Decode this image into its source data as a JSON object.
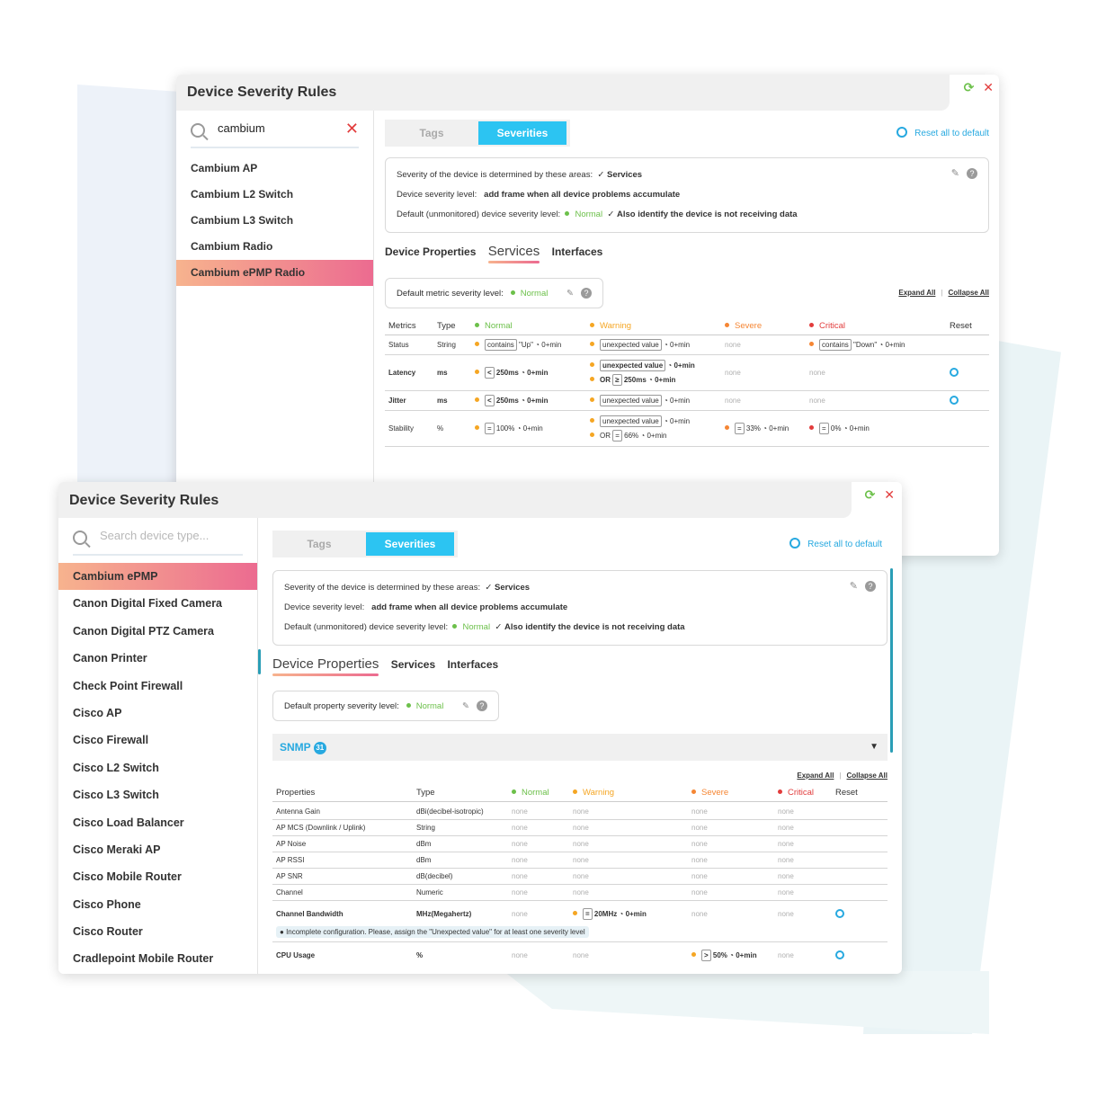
{
  "colors": {
    "accent": "#2cc4f2",
    "normal": "#6cc04a",
    "warning": "#f5a623",
    "severe": "#f58634",
    "critical": "#e23c3c"
  },
  "win1": {
    "title": "Device Severity Rules",
    "search": {
      "value": "cambium"
    },
    "sidebar": [
      "Cambium AP",
      "Cambium L2 Switch",
      "Cambium L3 Switch",
      "Cambium Radio",
      "Cambium ePMP Radio"
    ],
    "tabs": {
      "tags": "Tags",
      "severities": "Severities"
    },
    "reset_all": "Reset all to default",
    "info": {
      "line1_label": "Severity of the device is determined by these areas:",
      "line1_value": "Services",
      "line2_label": "Device severity level:",
      "line2_value": "add frame when all device problems accumulate",
      "line3_label": "Default (unmonitored) device severity level:",
      "line3_status": "Normal",
      "line3_extra": "Also identify the device is not receiving data"
    },
    "subtabs": {
      "device_properties": "Device Properties",
      "services": "Services",
      "interfaces": "Interfaces"
    },
    "default_metric": {
      "label": "Default metric severity level:",
      "value": "Normal"
    },
    "expand_all": "Expand All",
    "collapse_all": "Collapse All",
    "table": {
      "headers": [
        "Metrics",
        "Type",
        "Normal",
        "Warning",
        "Severe",
        "Critical",
        "Reset"
      ],
      "rows": [
        {
          "metric": "Status",
          "type": "String"
        },
        {
          "metric": "Latency",
          "type": "ms"
        },
        {
          "metric": "Jitter",
          "type": "ms"
        },
        {
          "metric": "Stability",
          "type": "%"
        }
      ],
      "cells": {
        "status_normal_op": "contains",
        "status_normal_val": "\"Up\"",
        "time": "0+min",
        "unexpected": "unexpected value",
        "none": "none",
        "status_critical_val": "\"Down\"",
        "lt": "<",
        "eq": "=",
        "ge": "≥",
        "gt": ">",
        "v250": "250ms",
        "or": "OR",
        "v100": "100%",
        "v66": "66%",
        "v33": "33%",
        "v0": "0%"
      }
    }
  },
  "win2": {
    "title": "Device Severity Rules",
    "search": {
      "placeholder": "Search device type..."
    },
    "sidebar": [
      "Cambium ePMP",
      "Canon Digital Fixed Camera",
      "Canon Digital PTZ Camera",
      "Canon Printer",
      "Check Point Firewall",
      "Cisco AP",
      "Cisco Firewall",
      "Cisco L2 Switch",
      "Cisco L3 Switch",
      "Cisco Load Balancer",
      "Cisco Meraki AP",
      "Cisco Mobile Router",
      "Cisco Phone",
      "Cisco Router",
      "Cradlepoint Mobile Router"
    ],
    "tabs": {
      "tags": "Tags",
      "severities": "Severities"
    },
    "reset_all": "Reset all to default",
    "info": {
      "line1_label": "Severity of the device is determined by these areas:",
      "line1_value": "Services",
      "line2_label": "Device severity level:",
      "line2_value": "add frame when all device problems accumulate",
      "line3_label": "Default (unmonitored) device severity level:",
      "line3_status": "Normal",
      "line3_extra": "Also identify the device is not receiving data"
    },
    "subtabs": {
      "device_properties": "Device Properties",
      "services": "Services",
      "interfaces": "Interfaces"
    },
    "default_property": {
      "label": "Default property severity level:",
      "value": "Normal"
    },
    "snmp": {
      "label": "SNMP",
      "count": "31"
    },
    "expand_all": "Expand All",
    "collapse_all": "Collapse All",
    "table": {
      "headers": [
        "Properties",
        "Type",
        "Normal",
        "Warning",
        "Severe",
        "Critical",
        "Reset"
      ],
      "rows": [
        {
          "name": "Antenna Gain",
          "type": "dBi(decibel-isotropic)"
        },
        {
          "name": "AP MCS (Downlink / Uplink)",
          "type": "String"
        },
        {
          "name": "AP Noise",
          "type": "dBm"
        },
        {
          "name": "AP RSSI",
          "type": "dBm"
        },
        {
          "name": "AP SNR",
          "type": "dB(decibel)"
        },
        {
          "name": "Channel",
          "type": "Numeric"
        },
        {
          "name": "Channel Bandwidth",
          "type": "MHz(Megahertz)"
        },
        {
          "name": "CPU Usage",
          "type": "%"
        }
      ],
      "none": "none",
      "cb_warning_op": "=",
      "cb_warning_val": "20MHz",
      "time": "0+min",
      "cpu_severe_op": ">",
      "cpu_severe_val": "50%",
      "incomplete_msg": "Incomplete configuration. Please, assign the \"Unexpected value\" for at least one severity level"
    }
  }
}
